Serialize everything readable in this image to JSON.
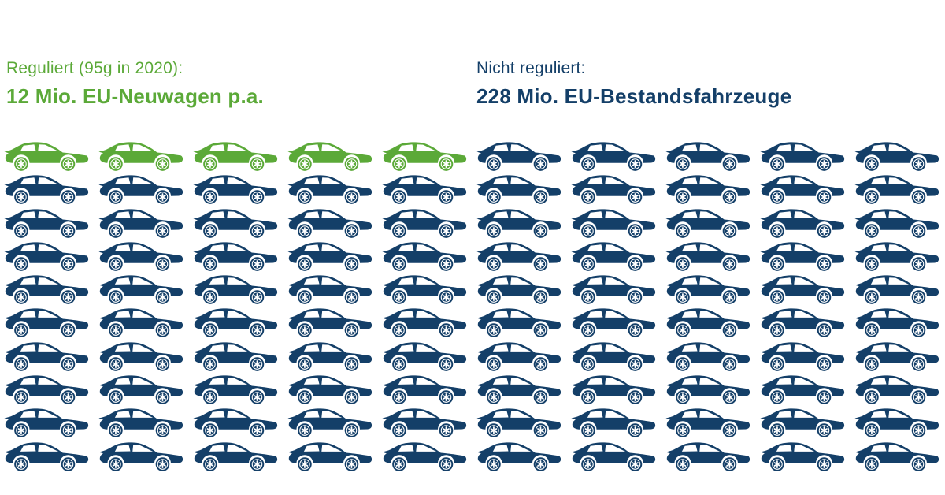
{
  "headers": {
    "left": {
      "line1": "Reguliert (95g in 2020):",
      "line2": "12 Mio. EU-Neuwagen p.a."
    },
    "right": {
      "line1": "Nicht reguliert:",
      "line2": "228 Mio. EU-Bestandsfahrzeuge"
    }
  },
  "colors": {
    "green": "#5BA938",
    "dark_blue": "#143F68",
    "background": "#ffffff"
  },
  "chart_data": {
    "type": "pictogram",
    "title": "",
    "icon": "car-side-view",
    "grid": {
      "rows": 10,
      "cols": 10,
      "total_icons": 100
    },
    "icon_value_mio": 2.4,
    "series": [
      {
        "name": "Reguliert (95g in 2020): EU-Neuwagen p.a.",
        "label_line1": "Reguliert (95g in 2020):",
        "label_line2": "12 Mio. EU-Neuwagen p.a.",
        "value_mio": 12,
        "icons": 5,
        "color": "#5BA938"
      },
      {
        "name": "Nicht reguliert: EU-Bestandsfahrzeuge",
        "label_line1": "Nicht reguliert:",
        "label_line2": "228 Mio. EU-Bestandsfahrzeuge",
        "value_mio": 228,
        "icons": 95,
        "color": "#143F68"
      }
    ],
    "layout": "row-major 10x10 icon array; first 5 icons (row 1, cols 1-5) are green series 1; remaining 95 icons are dark blue series 2",
    "legend_position": "headers above each half of the grid"
  }
}
